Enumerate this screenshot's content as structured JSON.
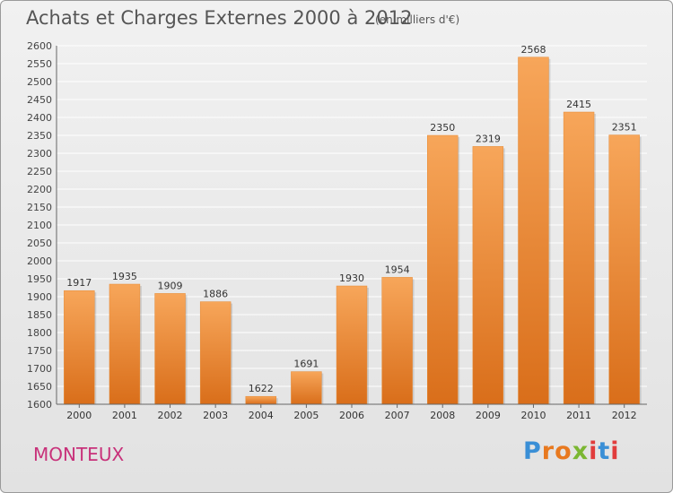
{
  "header": {
    "title": "Achats et Charges Externes 2000 à 2012",
    "unit": "(en milliers d'€)"
  },
  "footer": {
    "commune": "MONTEUX",
    "logo": "Proxiti"
  },
  "colors": {
    "bar_light": "#f7a65a",
    "bar_dark": "#d96e1a",
    "commune": "#c8317a",
    "gridline": "#ffffff"
  },
  "chart_data": {
    "type": "bar",
    "title": "Achats et Charges Externes 2000 à 2012",
    "xlabel": "",
    "ylabel": "",
    "categories": [
      "2000",
      "2001",
      "2002",
      "2003",
      "2004",
      "2005",
      "2006",
      "2007",
      "2008",
      "2009",
      "2010",
      "2011",
      "2012"
    ],
    "values": [
      1917,
      1935,
      1909,
      1886,
      1622,
      1691,
      1930,
      1954,
      2350,
      2319,
      2568,
      2415,
      2351
    ],
    "ylim": [
      1600,
      2600
    ],
    "ytick_step": 50,
    "grid": true
  }
}
